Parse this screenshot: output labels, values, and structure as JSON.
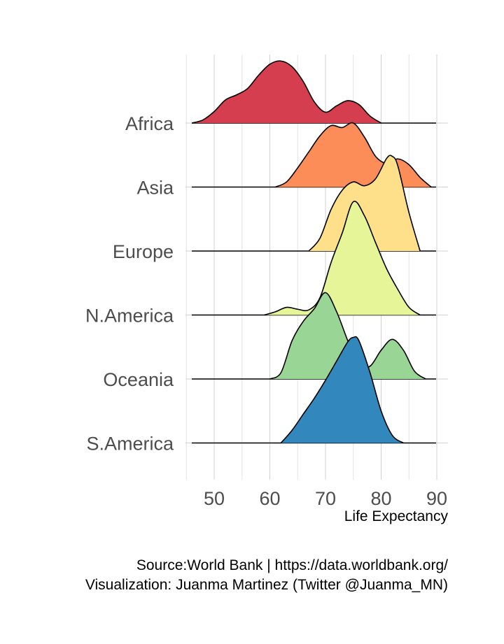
{
  "chart_data": {
    "type": "ridgeline",
    "xlabel": "Life Expectancy",
    "ylabel": "",
    "title": "",
    "xlim": [
      45,
      92
    ],
    "x_ticks": [
      50,
      60,
      70,
      80,
      90
    ],
    "grid": true,
    "legend": "none",
    "caption": [
      "Source:World Bank  | https://data.worldbank.org/",
      "Visualization: Juanma Martinez (Twitter @Juanma_MN)"
    ],
    "series": [
      {
        "name": "Africa",
        "color": "#d53e4f",
        "x": [
          46,
          48,
          50,
          52,
          54,
          56,
          58,
          60,
          62,
          64,
          66,
          68,
          70,
          72,
          74,
          76,
          78,
          80
        ],
        "density": [
          0.0,
          0.05,
          0.18,
          0.36,
          0.44,
          0.54,
          0.75,
          0.92,
          0.97,
          0.88,
          0.65,
          0.33,
          0.17,
          0.27,
          0.35,
          0.29,
          0.11,
          0.0
        ]
      },
      {
        "name": "Asia",
        "color": "#fc8d59",
        "x": [
          61,
          63,
          65,
          67,
          69,
          71,
          73,
          75,
          77,
          79,
          81,
          83,
          85,
          87,
          89
        ],
        "density": [
          0.0,
          0.08,
          0.3,
          0.55,
          0.8,
          0.96,
          0.93,
          1.0,
          0.78,
          0.48,
          0.37,
          0.44,
          0.35,
          0.15,
          0.0
        ]
      },
      {
        "name": "Europe",
        "color": "#fee08b",
        "x": [
          67,
          69,
          71,
          73,
          75,
          77,
          79,
          81,
          82,
          83,
          85,
          87
        ],
        "density": [
          0.0,
          0.2,
          0.65,
          0.95,
          1.08,
          1.02,
          1.13,
          1.45,
          1.48,
          1.33,
          0.6,
          0.0
        ]
      },
      {
        "name": "N.America",
        "color": "#e6f598",
        "x": [
          59,
          61,
          63,
          65,
          67,
          69,
          71,
          73,
          75,
          77,
          79,
          81,
          83,
          85,
          87
        ],
        "density": [
          0.0,
          0.05,
          0.12,
          0.09,
          0.08,
          0.27,
          0.82,
          1.28,
          1.77,
          1.55,
          1.13,
          0.72,
          0.4,
          0.12,
          0.0
        ]
      },
      {
        "name": "Oceania",
        "color": "#99d594",
        "x": [
          60,
          62,
          64,
          66,
          68,
          70,
          72,
          74,
          76,
          78,
          80,
          82,
          84,
          86,
          88
        ],
        "density": [
          0.0,
          0.1,
          0.6,
          0.9,
          1.1,
          1.35,
          1.05,
          0.6,
          0.22,
          0.2,
          0.45,
          0.62,
          0.45,
          0.12,
          0.0
        ]
      },
      {
        "name": "S.America",
        "color": "#3288bd",
        "x": [
          62,
          64,
          66,
          68,
          70,
          72,
          74,
          75,
          76,
          78,
          80,
          82,
          84
        ],
        "density": [
          0.0,
          0.2,
          0.45,
          0.7,
          0.98,
          1.28,
          1.58,
          1.65,
          1.6,
          1.1,
          0.5,
          0.12,
          0.0
        ]
      }
    ]
  }
}
